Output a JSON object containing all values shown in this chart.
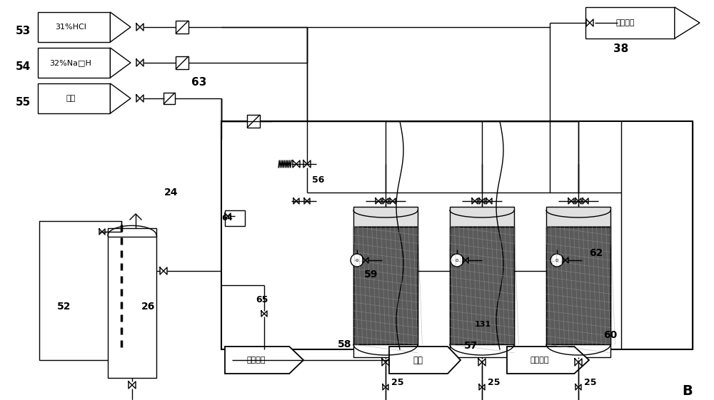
{
  "bg": "#ffffff",
  "lc": "#000000",
  "fig_w": 10.0,
  "fig_h": 5.61,
  "dpi": 100,
  "tank53_label": "31%HCl",
  "tank54_label": "32%Na□H",
  "tank55_label": "纯水",
  "air_label": "压缩空气",
  "out1_label": "氯化钓水",
  "out2_label": "废水",
  "out3_label": "纯化盐水",
  "num53": "53",
  "num54": "54",
  "num55": "55",
  "num38": "38",
  "num56": "56",
  "num63": "63",
  "num64": "64",
  "num65": "65",
  "num24": "24",
  "num52": "52",
  "num26": "26",
  "num59": "59",
  "num62": "62",
  "num131": "131",
  "num58": "58",
  "num57": "57",
  "num60": "60",
  "num25": "25",
  "B": "B"
}
